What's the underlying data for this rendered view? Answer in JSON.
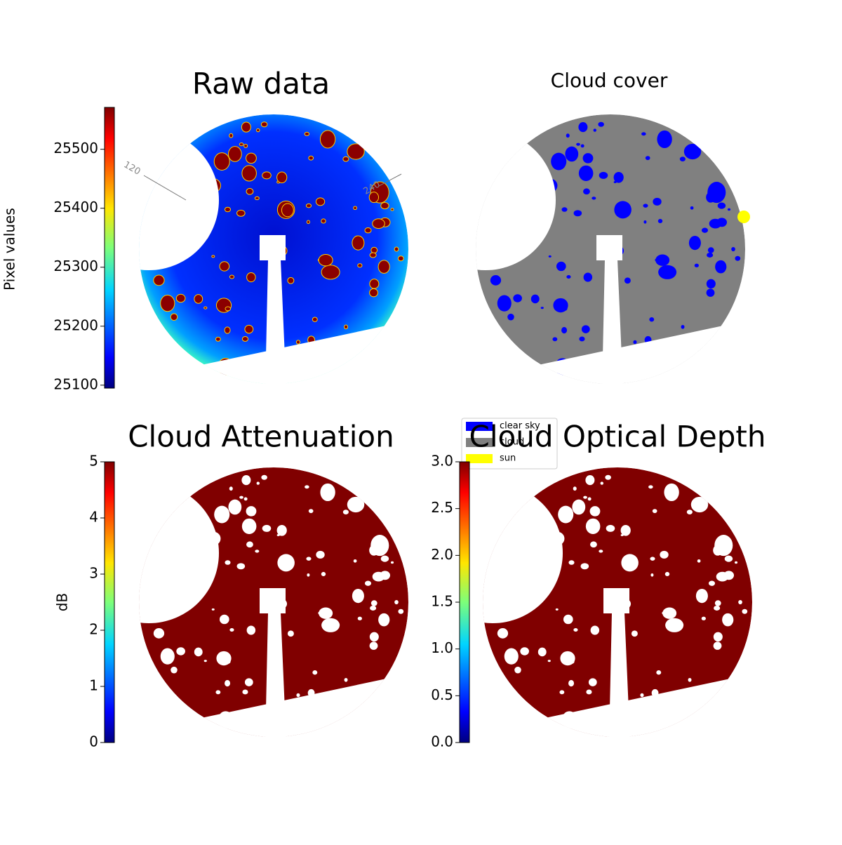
{
  "chart_data": [
    {
      "type": "image",
      "title": "Raw data",
      "colormap": "jet",
      "colorbar_label": "Pixel values",
      "ylim": [
        25095,
        25571
      ],
      "yticks": [
        25100,
        25200,
        25300,
        25400,
        25500
      ],
      "annotations": [
        "120",
        "240"
      ]
    },
    {
      "type": "image",
      "title": "Cloud cover",
      "series": [
        {
          "name": "clear sky",
          "color": "#0000ff"
        },
        {
          "name": "cloud",
          "color": "#808080"
        },
        {
          "name": "sun",
          "color": "#ffff00"
        }
      ]
    },
    {
      "type": "image",
      "title": "Cloud Attenuation",
      "colormap": "jet",
      "colorbar_label": "dB",
      "ylim": [
        0,
        5
      ],
      "yticks": [
        0,
        1,
        2,
        3,
        4,
        5
      ]
    },
    {
      "type": "image",
      "title": "Cloud Optical Depth",
      "colormap": "jet",
      "ylim": [
        0,
        3
      ],
      "yticks": [
        {
          "value": 0,
          "label": "0.0"
        },
        0.5,
        {
          "value": 1,
          "label": "1.0"
        },
        1.5,
        {
          "value": 2,
          "label": "2.0"
        },
        2.5,
        {
          "value": 3,
          "label": "3.0"
        }
      ]
    }
  ]
}
